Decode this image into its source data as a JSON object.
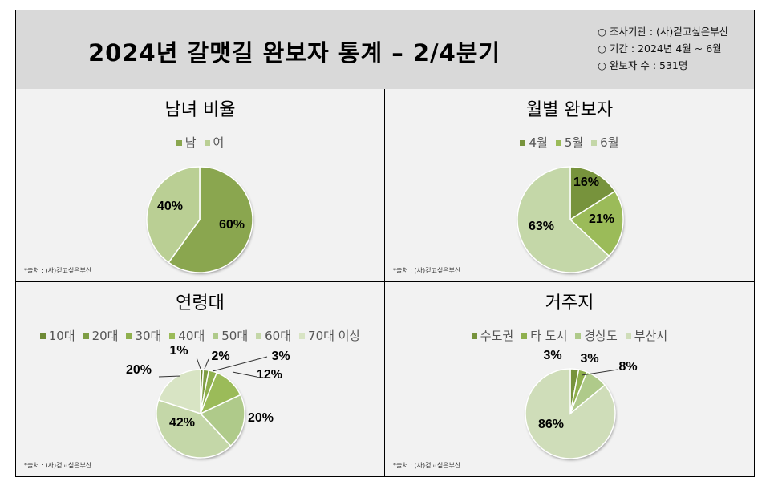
{
  "header": {
    "title": "2024년 갈맷길 완보자 통계 – 2/4분기",
    "info": [
      "○ 조사기관 : (사)걷고싶은부산",
      "○ 기간 : 2024년 4월 ~ 6월",
      "○ 완보자 수 : 531명"
    ]
  },
  "source": "*출처 : (사)걷고싶은부산",
  "chart_data": [
    {
      "type": "pie",
      "title": "남녀 비율",
      "categories": [
        "남",
        "여"
      ],
      "values": [
        60,
        40
      ],
      "labels": [
        "60%",
        "40%"
      ],
      "colors": [
        "#8aa64f",
        "#bacf94"
      ],
      "legend": "top"
    },
    {
      "type": "pie",
      "title": "월별 완보자",
      "categories": [
        "4월",
        "5월",
        "6월"
      ],
      "values": [
        16,
        21,
        63
      ],
      "labels": [
        "16%",
        "21%",
        "63%"
      ],
      "colors": [
        "#77933c",
        "#9bbb59",
        "#c4d7a8"
      ],
      "legend": "top"
    },
    {
      "type": "pie",
      "title": "연령대",
      "categories": [
        "10대",
        "20대",
        "30대",
        "40대",
        "50대",
        "60대",
        "70대 이상"
      ],
      "values": [
        1,
        2,
        3,
        12,
        20,
        42,
        20
      ],
      "labels": [
        "1%",
        "2%",
        "3%",
        "12%",
        "20%",
        "42%",
        "20%"
      ],
      "colors": [
        "#6f8a36",
        "#7e9d44",
        "#8fb04e",
        "#9bbb59",
        "#afca8a",
        "#c4d7a8",
        "#d8e4c4"
      ],
      "legend": "top"
    },
    {
      "type": "pie",
      "title": "거주지",
      "categories": [
        "수도권",
        "타 도시",
        "경상도",
        "부산시"
      ],
      "values": [
        3,
        3,
        8,
        86
      ],
      "labels": [
        "3%",
        "3%",
        "8%",
        "86%"
      ],
      "colors": [
        "#77933c",
        "#8fb04e",
        "#afca8a",
        "#cfddb9"
      ],
      "legend": "top"
    }
  ]
}
